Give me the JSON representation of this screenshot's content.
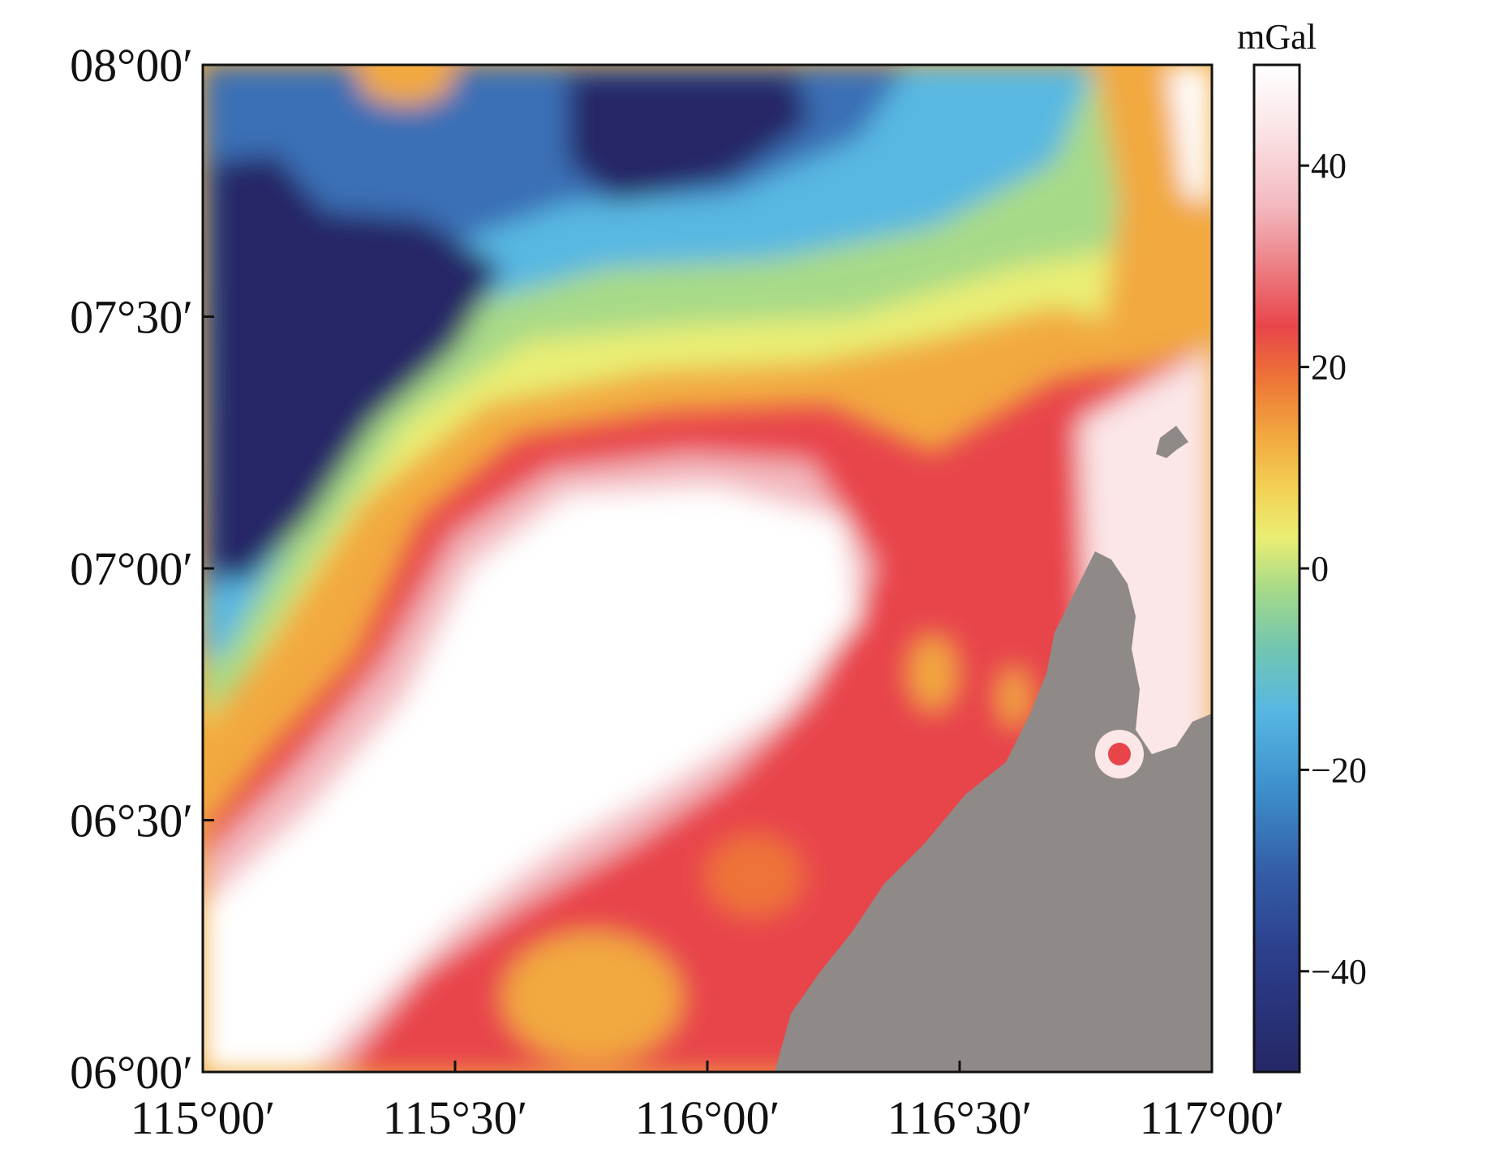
{
  "map": {
    "y_ticks": [
      "08°00′",
      "07°30′",
      "07°00′",
      "06°30′",
      "06°00′"
    ],
    "x_ticks": [
      "115°00′",
      "115°30′",
      "116°00′",
      "116°30′",
      "117°00′"
    ],
    "lat_range": [
      6.0,
      8.0
    ],
    "lon_range": [
      115.0,
      117.0
    ],
    "land_color": "#8f8a87"
  },
  "colorbar": {
    "unit": "mGal",
    "range": [
      -50,
      50
    ],
    "ticks": [
      {
        "value": 40,
        "label": "40"
      },
      {
        "value": 20,
        "label": "20"
      },
      {
        "value": 0,
        "label": "0"
      },
      {
        "value": -20,
        "label": "−20"
      },
      {
        "value": -40,
        "label": "−40"
      }
    ],
    "stops": [
      "#ffffff",
      "#f5c4c8",
      "#e8454b",
      "#ef8a36",
      "#f3c848",
      "#eef06a",
      "#8fd08a",
      "#58b8e2",
      "#3a86c4",
      "#2c4e9a",
      "#2a2a6f"
    ]
  }
}
